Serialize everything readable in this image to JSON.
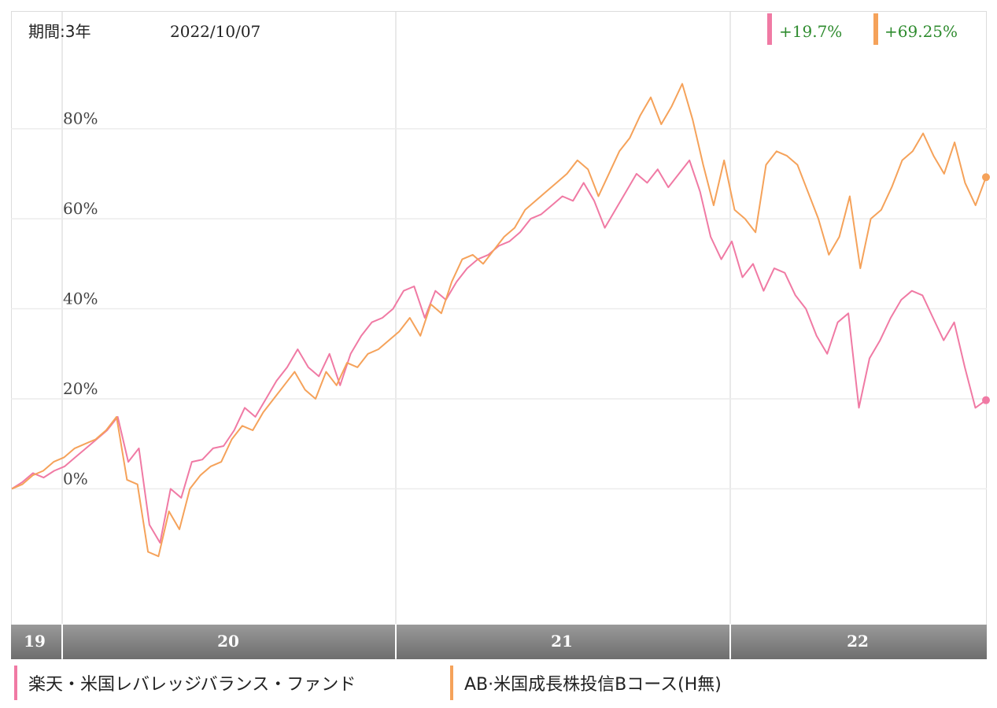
{
  "header": {
    "period_label": "期間:3年",
    "date": "2022/10/07"
  },
  "chart_data": {
    "type": "line",
    "x_period_labels": [
      "19",
      "20",
      "21",
      "22"
    ],
    "y_ticks": [
      "80%",
      "60%",
      "40%",
      "20%",
      "0%"
    ],
    "y_tick_values": [
      80,
      60,
      40,
      20,
      0
    ],
    "ylim": [
      -30,
      106
    ],
    "grid": true,
    "legend_position": "bottom",
    "series": [
      {
        "name": "楽天・米国レバレッジバランス・ファンド",
        "color": "#f07aa4",
        "change_label": "+19.7%",
        "values": [
          0,
          1.5,
          3.5,
          2.5,
          4,
          5,
          7,
          9,
          11,
          13,
          16,
          6,
          9,
          -8,
          -12,
          0,
          -2,
          6,
          6.5,
          9,
          9.5,
          13,
          18,
          16,
          20,
          24,
          27,
          31,
          27,
          25,
          30,
          23,
          30,
          34,
          37,
          38,
          40,
          44,
          45,
          38,
          44,
          42,
          46,
          49,
          51,
          52,
          54,
          55,
          57,
          60,
          61,
          63,
          65,
          64,
          68,
          64,
          58,
          62,
          66,
          70,
          68,
          71,
          67,
          70,
          73,
          66,
          56,
          51,
          55,
          47,
          50,
          44,
          49,
          48,
          43,
          40,
          34,
          30,
          37,
          39,
          18,
          29,
          33,
          38,
          42,
          44,
          43,
          38,
          33,
          37,
          27,
          18,
          19.7
        ]
      },
      {
        "name": "AB·米国成長株投信Bコース(H無)",
        "color": "#f5a25a",
        "change_label": "+69.25%",
        "values": [
          0,
          1,
          3,
          4,
          6,
          7,
          9,
          10,
          11,
          13,
          16,
          2,
          1,
          -14,
          -15,
          -5,
          -9,
          0,
          3,
          5,
          6,
          11,
          14,
          13,
          17,
          20,
          23,
          26,
          22,
          20,
          26,
          23,
          28,
          27,
          30,
          31,
          33,
          35,
          38,
          34,
          41,
          39,
          46,
          51,
          52,
          50,
          53,
          56,
          58,
          62,
          64,
          66,
          68,
          70,
          73,
          71,
          65,
          70,
          75,
          78,
          83,
          87,
          81,
          85,
          90,
          82,
          72,
          63,
          73,
          62,
          60,
          57,
          72,
          75,
          74,
          72,
          66,
          60,
          52,
          56,
          65,
          49,
          60,
          62,
          67,
          73,
          75,
          79,
          74,
          70,
          77,
          68,
          63,
          69.25
        ]
      }
    ]
  }
}
